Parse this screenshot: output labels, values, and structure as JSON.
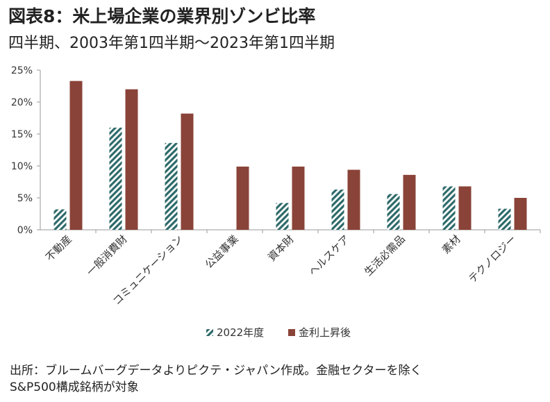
{
  "title": "図表8：米上場企業の業界別ゾンビ比率",
  "subtitle": "四半期、2003年第1四半期～2023年第1四半期",
  "source_line1": "出所：ブルームバーグデータよりピクテ・ジャパン作成。金融セクターを除く",
  "source_line2": "S&P500構成銘柄が対象",
  "chart_data": {
    "type": "bar",
    "categories": [
      "不動産",
      "一般消費財",
      "コミュニケーション",
      "公益事業",
      "資本財",
      "ヘルスケア",
      "生活必需品",
      "素材",
      "テクノロジー"
    ],
    "series": [
      {
        "name": "2022年度",
        "values": [
          3.2,
          16.0,
          13.6,
          0,
          4.2,
          6.3,
          5.6,
          6.8,
          3.3
        ],
        "color": "#2e6a6a",
        "pattern": "diagonal-hatch"
      },
      {
        "name": "金利上昇後",
        "values": [
          23.3,
          22.0,
          18.2,
          9.9,
          9.9,
          9.4,
          8.6,
          6.8,
          5.0
        ],
        "color": "#8a4338"
      }
    ],
    "ylim": [
      0,
      25
    ],
    "yticks": [
      "0%",
      "5%",
      "10%",
      "15%",
      "20%",
      "25%"
    ],
    "ytick_values": [
      0,
      5,
      10,
      15,
      20,
      25
    ],
    "legend_position": "bottom",
    "grid": false
  }
}
